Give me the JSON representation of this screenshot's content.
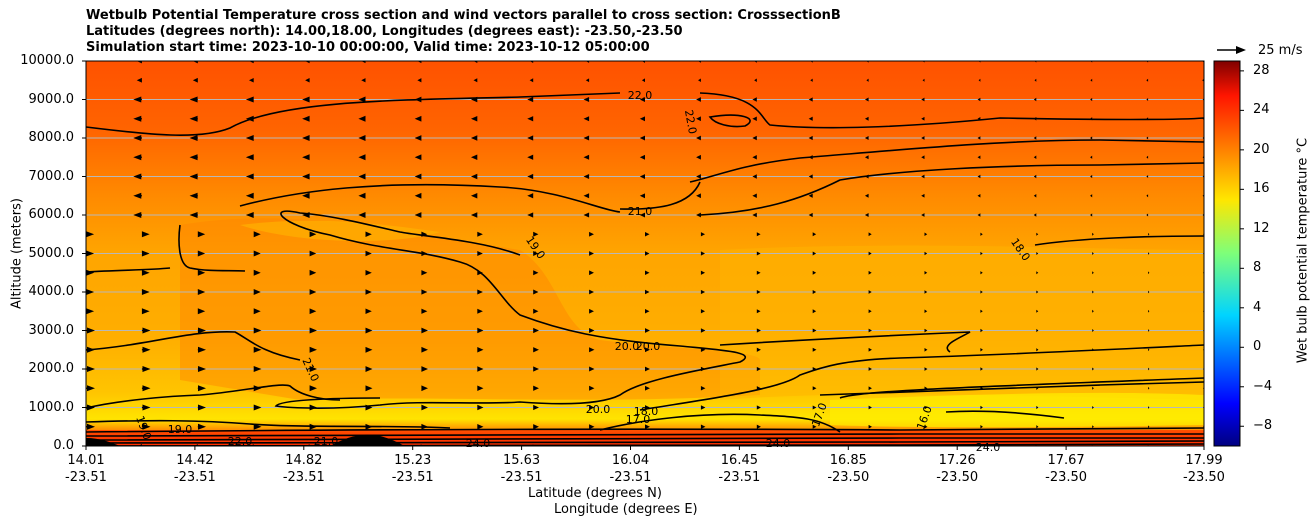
{
  "chart_data": {
    "type": "heatmap",
    "title_lines": [
      "Wetbulb Potential Temperature cross section and wind vectors parallel to cross section: CrosssectionB",
      "Latitudes (degrees north): 14.00,18.00, Longitudes (degrees east): -23.50,-23.50",
      "Simulation start time: 2023-10-10 00:00:00, Valid time: 2023-10-12 05:00:00"
    ],
    "ylabel": "Altitude (meters)",
    "xlabel_lines": [
      "Latitude (degrees N)",
      "Longitude (degrees E)"
    ],
    "ylim": [
      0,
      10000
    ],
    "y_ticks": [
      "0.0",
      "1000.0",
      "2000.0",
      "3000.0",
      "4000.0",
      "5000.0",
      "6000.0",
      "7000.0",
      "8000.0",
      "9000.0",
      "10000.0"
    ],
    "x_ticks": [
      {
        "lat": "14.01",
        "lon": "-23.51"
      },
      {
        "lat": "14.42",
        "lon": "-23.51"
      },
      {
        "lat": "14.82",
        "lon": "-23.51"
      },
      {
        "lat": "15.23",
        "lon": "-23.51"
      },
      {
        "lat": "15.63",
        "lon": "-23.51"
      },
      {
        "lat": "16.04",
        "lon": "-23.51"
      },
      {
        "lat": "16.45",
        "lon": "-23.51"
      },
      {
        "lat": "16.85",
        "lon": "-23.50"
      },
      {
        "lat": "17.26",
        "lon": "-23.50"
      },
      {
        "lat": "17.67",
        "lon": "-23.50"
      },
      {
        "lat": "17.99",
        "lon": "-23.50"
      }
    ],
    "colorbar": {
      "label": "Wet bulb potential temperature $^\\circ$C",
      "label_display": "Wet bulb potential temperature °C",
      "ticks": [
        "28",
        "24",
        "20",
        "16",
        "12",
        "8",
        "4",
        "0",
        "−4",
        "−8"
      ],
      "range": [
        -10,
        29
      ],
      "colormap": "jet"
    },
    "reference_vector": "25 m/s",
    "contour_labels": [
      "22.0",
      "22.0",
      "21.0",
      "19.0",
      "18.0",
      "21.0",
      "20.0",
      "20.0",
      "20.0",
      "18.0",
      "17.0",
      "17.0",
      "16.0",
      "19.0",
      "19.0",
      "22.0",
      "21.0",
      "24.0",
      "24.0",
      "24.0"
    ],
    "grid": true
  }
}
